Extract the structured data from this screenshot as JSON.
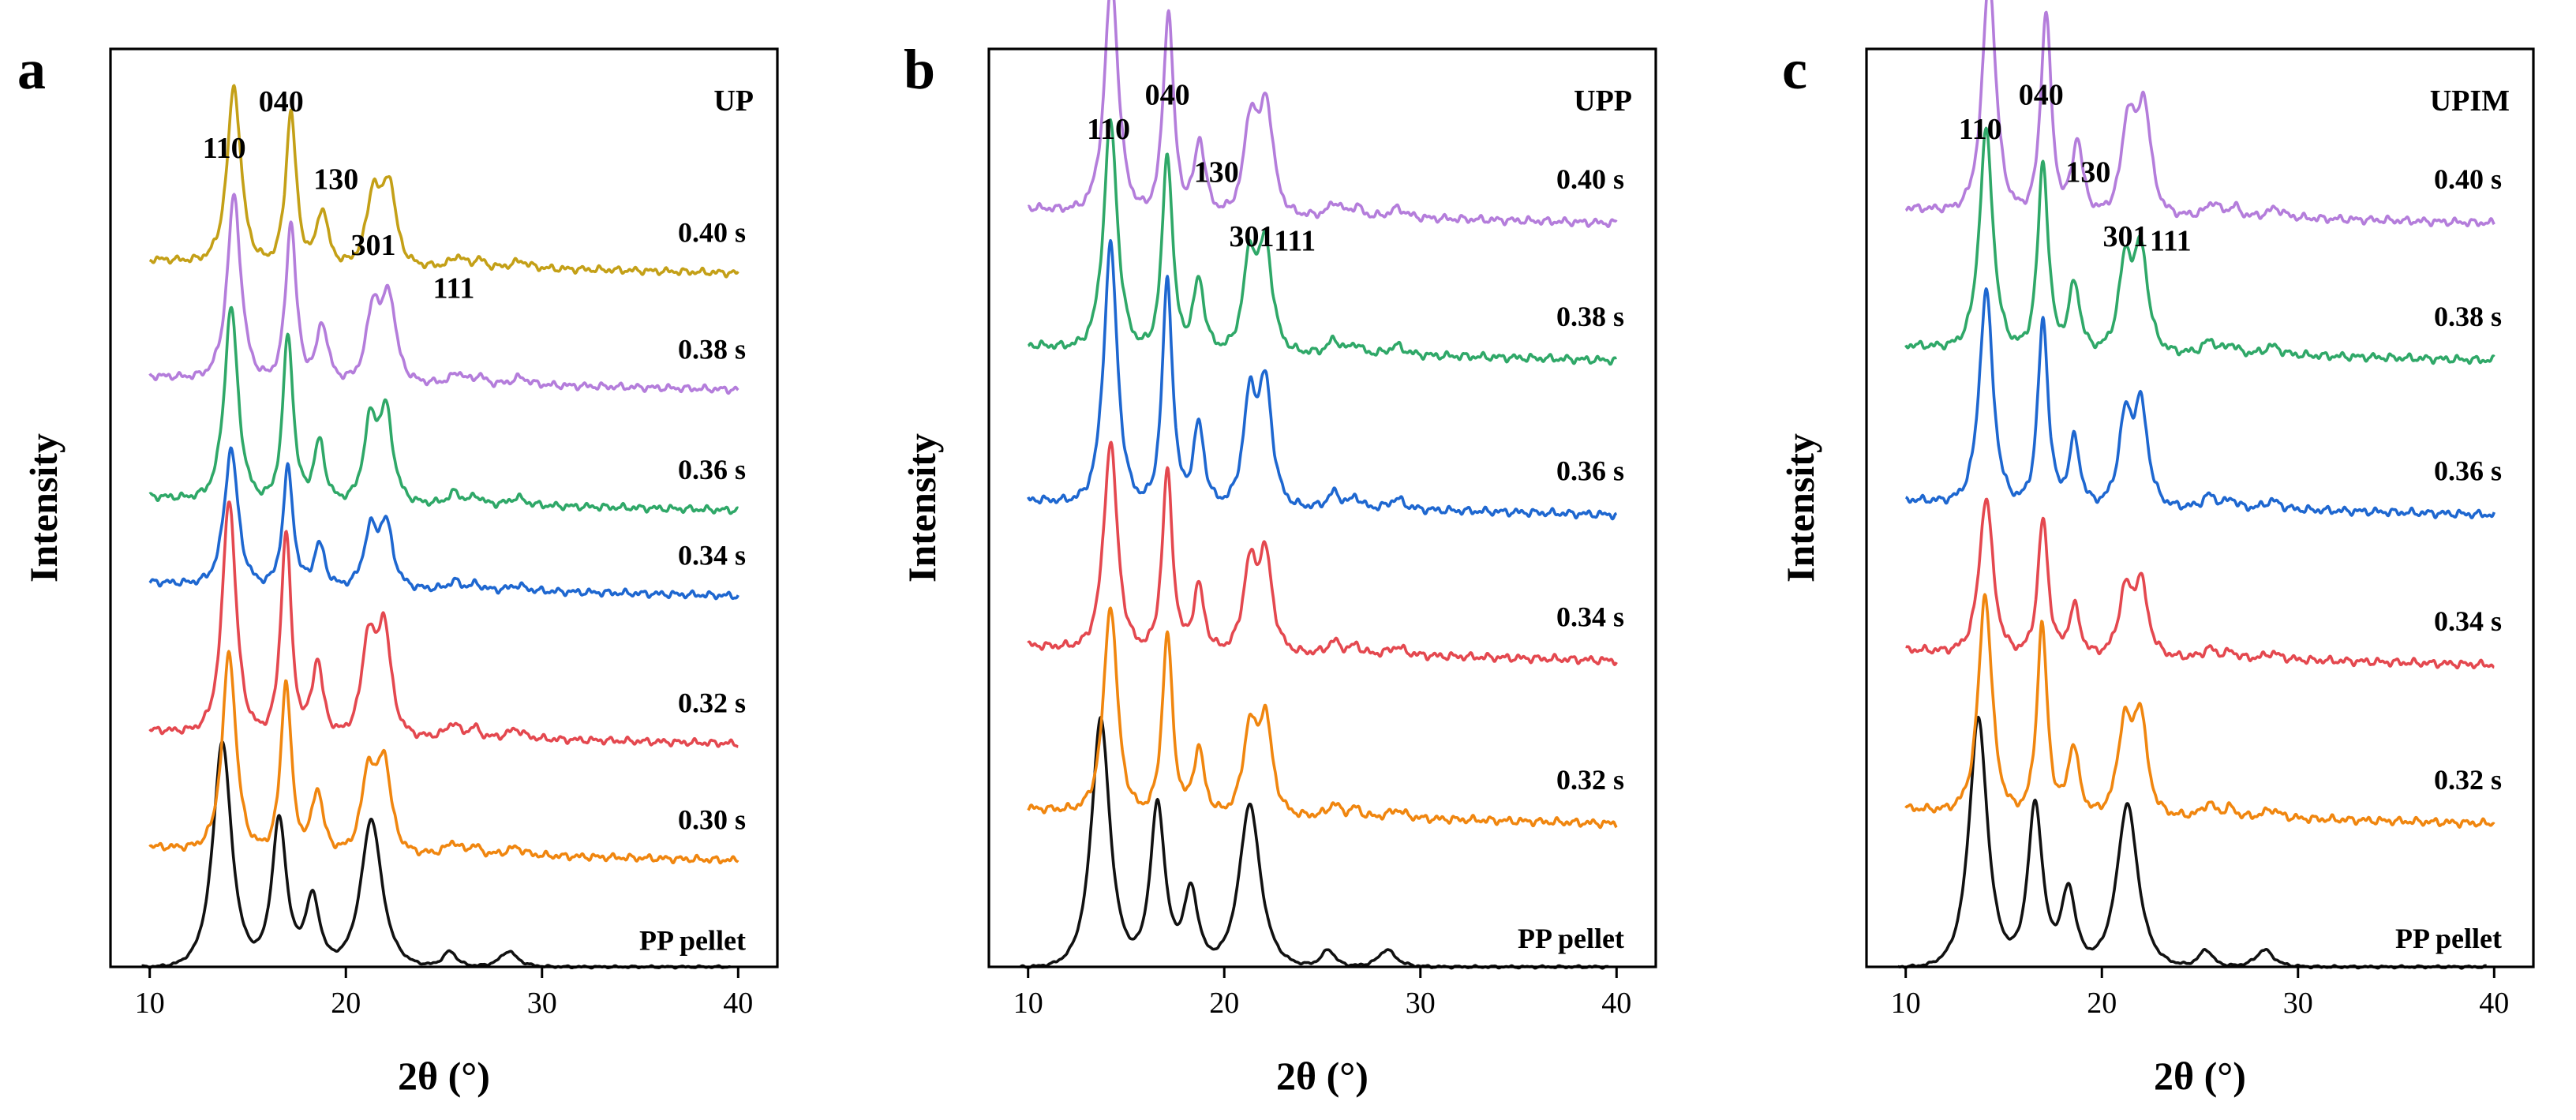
{
  "figure": {
    "ylabel": "Intensity",
    "xlabel": "2θ (°)"
  },
  "colors": {
    "black": "#111111",
    "orange": "#f0860f",
    "red": "#e4484f",
    "blue": "#1e67d0",
    "green": "#2fa868",
    "purple": "#b47ddb",
    "gold": "#c4a017"
  },
  "chart_data": [
    {
      "type": "line",
      "panel": "a",
      "sample": "UP",
      "xlabel": "2θ (°)",
      "ylabel": "Intensity",
      "xlim": [
        8,
        42
      ],
      "xticks": [
        10,
        20,
        30,
        40
      ],
      "xtick_labels": [
        "10",
        "20",
        "30",
        "40"
      ],
      "ylim": [
        0,
        11.8
      ],
      "grid": false,
      "peak_labels": [
        {
          "text": "110",
          "x": 13.8,
          "y": 10.4
        },
        {
          "text": "040",
          "x": 16.7,
          "y": 11.0
        },
        {
          "text": "130",
          "x": 19.5,
          "y": 10.0
        },
        {
          "text": "301",
          "x": 21.4,
          "y": 9.15
        },
        {
          "text": "111",
          "x": 25.5,
          "y": 8.6
        }
      ],
      "series": [
        {
          "name": "PP pellet",
          "label": "PP pellet",
          "color": "black",
          "offset": 0.0,
          "scale": 1.0,
          "shift": 0.0,
          "xstart": 9.6,
          "xend": 39.6
        },
        {
          "name": "0.30 s",
          "label": "0.30 s",
          "color": "orange",
          "offset": 1.55,
          "scale": 0.84,
          "shift": 0.15,
          "xstart": 10.0,
          "xend": 40.0
        },
        {
          "name": "0.32 s",
          "label": "0.32 s",
          "color": "red",
          "offset": 3.05,
          "scale": 1.0,
          "shift": 0.15,
          "xstart": 10.0,
          "xend": 40.0
        },
        {
          "name": "0.34 s",
          "label": "0.34 s",
          "color": "blue",
          "offset": 4.95,
          "scale": 0.58,
          "shift": 0.25,
          "xstart": 10.0,
          "xend": 40.0
        },
        {
          "name": "0.36 s",
          "label": "0.36 s",
          "color": "green",
          "offset": 6.05,
          "scale": 0.82,
          "shift": 0.25,
          "xstart": 10.0,
          "xend": 40.0
        },
        {
          "name": "0.38 s",
          "label": "0.38 s",
          "color": "purple",
          "offset": 7.6,
          "scale": 0.78,
          "shift": 0.4,
          "xstart": 10.0,
          "xend": 40.0
        },
        {
          "name": "0.40 s",
          "label": "0.40 s",
          "color": "gold",
          "offset": 9.1,
          "scale": 0.75,
          "shift": 0.4,
          "xstart": 10.0,
          "xend": 40.0
        }
      ]
    },
    {
      "type": "line",
      "panel": "b",
      "sample": "UPP",
      "xlabel": "2θ (°)",
      "ylabel": "Intensity",
      "xlim": [
        8,
        42
      ],
      "xticks": [
        10,
        20,
        30,
        40
      ],
      "xtick_labels": [
        "10",
        "20",
        "30",
        "40"
      ],
      "ylim": [
        0,
        10.7
      ],
      "grid": false,
      "peak_labels": [
        {
          "text": "110",
          "x": 14.1,
          "y": 9.65
        },
        {
          "text": "040",
          "x": 17.1,
          "y": 10.05
        },
        {
          "text": "130",
          "x": 19.6,
          "y": 9.15
        },
        {
          "text": "301",
          "x": 21.4,
          "y": 8.4
        },
        {
          "text": "111",
          "x": 23.6,
          "y": 8.35
        }
      ],
      "series": [
        {
          "name": "PP pellet",
          "label": "PP pellet",
          "color": "black",
          "offset": 0.0,
          "scale": 1.0,
          "shift": 0.0,
          "xstart": 9.6,
          "xend": 39.6
        },
        {
          "name": "0.32 s",
          "label": "0.32 s",
          "color": "orange",
          "offset": 1.85,
          "scale": 0.8,
          "shift": 0.3,
          "xstart": 10.0,
          "xend": 40.0
        },
        {
          "name": "0.34 s",
          "label": "0.34 s",
          "color": "red",
          "offset": 3.75,
          "scale": 0.8,
          "shift": 0.3,
          "xstart": 10.0,
          "xend": 40.0
        },
        {
          "name": "0.36 s",
          "label": "0.36 s",
          "color": "blue",
          "offset": 5.45,
          "scale": 1.0,
          "shift": 0.3,
          "xstart": 10.0,
          "xend": 40.0
        },
        {
          "name": "0.38 s",
          "label": "0.38 s",
          "color": "green",
          "offset": 7.25,
          "scale": 0.88,
          "shift": 0.3,
          "xstart": 10.0,
          "xend": 40.0
        },
        {
          "name": "0.40 s",
          "label": "0.40 s",
          "color": "purple",
          "offset": 8.85,
          "scale": 0.9,
          "shift": 0.35,
          "xstart": 10.0,
          "xend": 40.0
        }
      ]
    },
    {
      "type": "line",
      "panel": "c",
      "sample": "UPIM",
      "xlabel": "2θ (°)",
      "ylabel": "Intensity",
      "xlim": [
        8,
        42
      ],
      "xticks": [
        10,
        20,
        30,
        40
      ],
      "xtick_labels": [
        "10",
        "20",
        "30",
        "40"
      ],
      "ylim": [
        0,
        10.7
      ],
      "grid": false,
      "peak_labels": [
        {
          "text": "110",
          "x": 13.8,
          "y": 9.65
        },
        {
          "text": "040",
          "x": 16.9,
          "y": 10.05
        },
        {
          "text": "130",
          "x": 19.3,
          "y": 9.15
        },
        {
          "text": "301",
          "x": 21.2,
          "y": 8.4
        },
        {
          "text": "111",
          "x": 23.5,
          "y": 8.35
        }
      ],
      "series": [
        {
          "name": "PP pellet",
          "label": "PP pellet",
          "color": "black",
          "offset": 0.0,
          "scale": 1.0,
          "shift": 0.0,
          "xstart": 9.6,
          "xend": 39.6
        },
        {
          "name": "0.32 s",
          "label": "0.32 s",
          "color": "orange",
          "offset": 1.85,
          "scale": 0.84,
          "shift": 0.15,
          "xstart": 10.0,
          "xend": 40.0
        },
        {
          "name": "0.34 s",
          "label": "0.34 s",
          "color": "red",
          "offset": 3.7,
          "scale": 0.6,
          "shift": 0.2,
          "xstart": 10.0,
          "xend": 40.0
        },
        {
          "name": "0.36 s",
          "label": "0.36 s",
          "color": "blue",
          "offset": 5.45,
          "scale": 0.82,
          "shift": 0.2,
          "xstart": 10.0,
          "xend": 40.0
        },
        {
          "name": "0.38 s",
          "label": "0.38 s",
          "color": "green",
          "offset": 7.25,
          "scale": 0.84,
          "shift": 0.2,
          "xstart": 10.0,
          "xend": 40.0
        },
        {
          "name": "0.40 s",
          "label": "0.40 s",
          "color": "purple",
          "offset": 8.85,
          "scale": 0.9,
          "shift": 0.35,
          "xstart": 10.0,
          "xend": 40.0
        }
      ]
    }
  ]
}
